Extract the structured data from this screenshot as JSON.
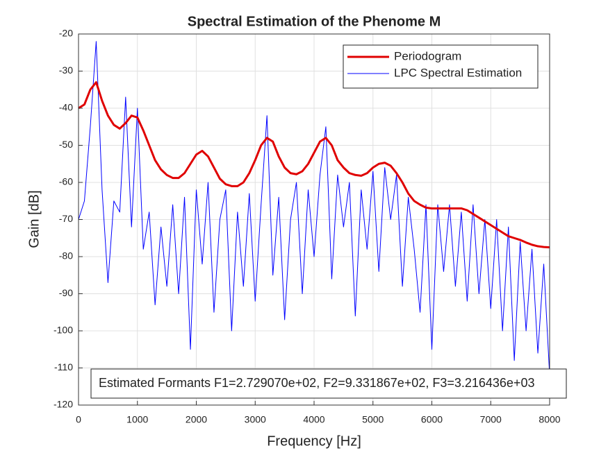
{
  "chart_data": {
    "type": "line",
    "title": "Spectral Estimation of the Phenome M",
    "xlabel": "Frequency [Hz]",
    "ylabel": "Gain [dB]",
    "annotation": "Estimated Formants F1=2.729070e+02, F2=9.331867e+02, F3=3.216436e+03",
    "x": [
      0,
      100,
      200,
      300,
      400,
      500,
      600,
      700,
      800,
      900,
      1000,
      1100,
      1200,
      1300,
      1400,
      1500,
      1600,
      1700,
      1800,
      1900,
      2000,
      2100,
      2200,
      2300,
      2400,
      2500,
      2600,
      2700,
      2800,
      2900,
      3000,
      3100,
      3200,
      3300,
      3400,
      3500,
      3600,
      3700,
      3800,
      3900,
      4000,
      4100,
      4200,
      4300,
      4400,
      4500,
      4600,
      4700,
      4800,
      4900,
      5000,
      5100,
      5200,
      5300,
      5400,
      5500,
      5600,
      5700,
      5800,
      5900,
      6000,
      6100,
      6200,
      6300,
      6400,
      6500,
      6600,
      6700,
      6800,
      6900,
      7000,
      7100,
      7200,
      7300,
      7400,
      7500,
      7600,
      7700,
      7800,
      7900,
      8000
    ],
    "series": [
      {
        "name": "Periodogram",
        "color": "#e00000",
        "width": 3,
        "values": [
          -40,
          -39,
          -35,
          -33,
          -38,
          -42,
          -44.5,
          -45.5,
          -44,
          -42,
          -42.5,
          -46,
          -50,
          -54,
          -56.5,
          -58,
          -58.8,
          -58.8,
          -57.5,
          -55,
          -52.5,
          -51.5,
          -53,
          -56,
          -59,
          -60.5,
          -61,
          -61,
          -60,
          -57.5,
          -54,
          -50,
          -48,
          -49,
          -53,
          -56,
          -57.5,
          -57.8,
          -57,
          -55,
          -52,
          -49,
          -48,
          -50,
          -54,
          -56,
          -57.5,
          -58,
          -58.2,
          -57.5,
          -56,
          -55,
          -54.7,
          -55.5,
          -57.5,
          -60,
          -63,
          -65,
          -66,
          -66.8,
          -67,
          -67,
          -67,
          -67,
          -67,
          -67,
          -67.5,
          -68.5,
          -69.5,
          -70.5,
          -71.5,
          -72.5,
          -73.5,
          -74.5,
          -75,
          -75.5,
          -76.2,
          -76.8,
          -77.2,
          -77.4,
          -77.5
        ]
      },
      {
        "name": "LPC Spectral Estimation",
        "color": "#0000ff",
        "width": 1,
        "values": [
          -70,
          -65,
          -45,
          -22,
          -62,
          -87,
          -65,
          -68,
          -37,
          -72,
          -40,
          -78,
          -68,
          -93,
          -72,
          -88,
          -66,
          -90,
          -64,
          -105,
          -62,
          -82,
          -60,
          -95,
          -70,
          -62,
          -100,
          -68,
          -88,
          -63,
          -92,
          -66,
          -42,
          -85,
          -64,
          -97,
          -70,
          -60,
          -90,
          -62,
          -80,
          -58,
          -45,
          -86,
          -58,
          -72,
          -60,
          -96,
          -62,
          -78,
          -57,
          -84,
          -56,
          -70,
          -58,
          -88,
          -64,
          -78,
          -95,
          -66,
          -105,
          -66,
          -84,
          -66,
          -88,
          -68,
          -92,
          -66,
          -90,
          -70,
          -94,
          -70,
          -100,
          -72,
          -108,
          -76,
          -100,
          -78,
          -106,
          -82,
          -112
        ]
      }
    ],
    "xlim": [
      0,
      8000
    ],
    "xticks": [
      0,
      1000,
      2000,
      3000,
      4000,
      5000,
      6000,
      7000,
      8000
    ],
    "ylim": [
      -120,
      -20
    ],
    "yticks": [
      -20,
      -30,
      -40,
      -50,
      -60,
      -70,
      -80,
      -90,
      -100,
      -110,
      -120
    ],
    "grid": true,
    "legend": "upper right"
  }
}
